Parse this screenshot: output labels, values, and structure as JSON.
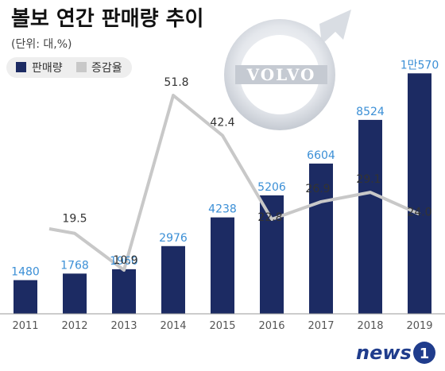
{
  "header": {
    "title": "볼보 연간 판매량 추이",
    "unit_note": "(단위: 대,%)"
  },
  "legend": {
    "bar_label": "판매량",
    "line_label": "증감율"
  },
  "emblem": {
    "text": "VOLVO"
  },
  "watermark": {
    "text": "news",
    "badge": "1"
  },
  "colors": {
    "bar": "#1c2b63",
    "line": "#c8c8c8",
    "bar_label": "#3b8fd6",
    "axis": "#999999",
    "legend_bg": "#eeeeee"
  },
  "chart_data": {
    "type": "bar",
    "categories": [
      "2011",
      "2012",
      "2013",
      "2014",
      "2015",
      "2016",
      "2017",
      "2018",
      "2019"
    ],
    "series": [
      {
        "name": "판매량",
        "type": "bar",
        "values": [
          1480,
          1768,
          1960,
          2976,
          4238,
          5206,
          6604,
          8524,
          10570
        ],
        "labels": [
          "1480",
          "1768",
          "1960",
          "2976",
          "4238",
          "5206",
          "6604",
          "8524",
          "1만570"
        ]
      },
      {
        "name": "증감율",
        "type": "line",
        "values": [
          null,
          19.5,
          10.9,
          51.8,
          42.4,
          22.8,
          26.9,
          29.1,
          24.0
        ],
        "labels": [
          "",
          "19.5",
          "10.9",
          "51.8",
          "42.4",
          "22.8",
          "26.9",
          "29.1",
          "24.0"
        ]
      }
    ],
    "title": "볼보 연간 판매량 추이",
    "xlabel": "",
    "ylabel": "",
    "ylim_bar": [
      0,
      11000
    ],
    "ylim_line": [
      -20,
      70
    ],
    "grid": false,
    "legend_position": "top-left"
  }
}
